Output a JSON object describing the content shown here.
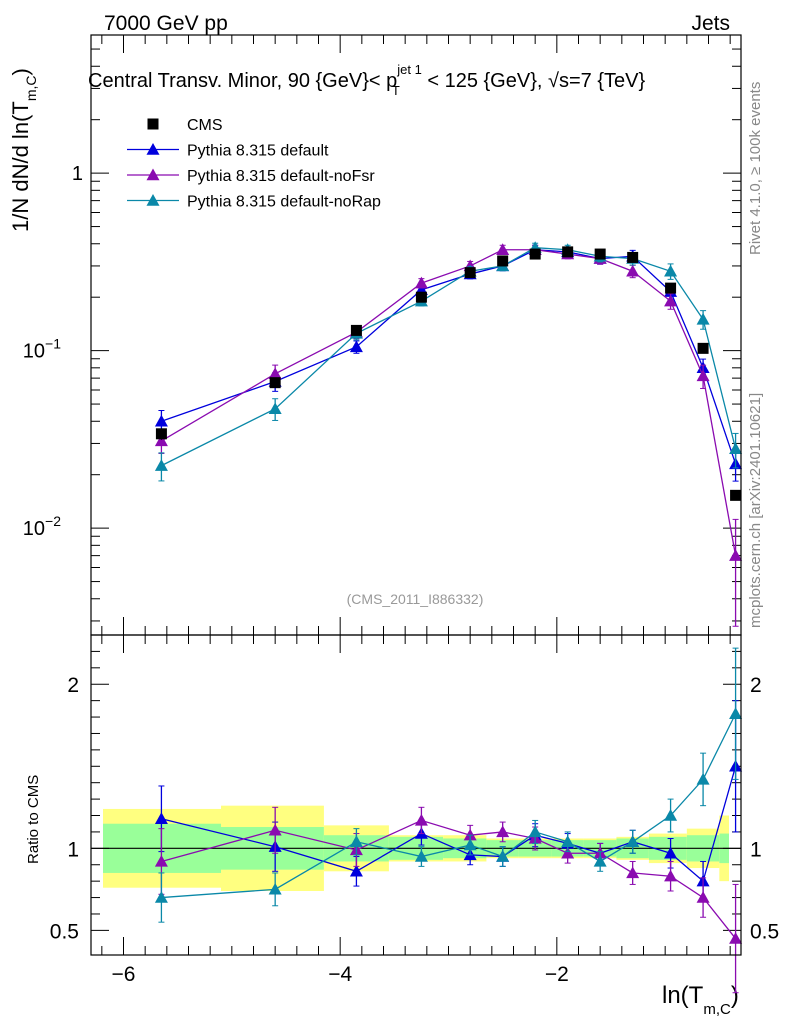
{
  "header": {
    "left": "7000 GeV pp",
    "right": "Jets"
  },
  "title": {
    "prefix": "Central Transv. Minor, 90 {GeV}< p",
    "sup": "jet 1",
    "sub": "T",
    "suffix": " < 125 {GeV}, ",
    "sqrt_s": "√s=7 {TeV}"
  },
  "side_labels": {
    "rivet": "Rivet 4.1.0, ≥ 100k events",
    "mcplots": "mcplots.cern.ch [arXiv:2401.10621]"
  },
  "analysis_id": "(CMS_2011_I886332)",
  "colors": {
    "cms": "#000000",
    "default": "#0000dd",
    "noFsr": "#8a0bb0",
    "noRap": "#0a88a8",
    "band_yellow": "#ffff80",
    "band_green": "#99ff99"
  },
  "chart_data": {
    "type": "scatter",
    "xlabel_main": "ln(T",
    "xlabel_sub": "m,C",
    "xlabel_close": ")",
    "ylabel_main": "1/N    dN/d ln(T",
    "ylabel_sub": "m,C",
    "ylabel_close": ")",
    "ratio_ylabel": "Ratio to CMS",
    "xlim": [
      -6.3,
      -0.3
    ],
    "ylim_main": [
      0.0025,
      6.0
    ],
    "ylim_ratio": [
      0.35,
      2.3
    ],
    "main_yticks": [
      {
        "value": 1.0,
        "base": "1",
        "exp": ""
      },
      {
        "value": 0.1,
        "base": "10",
        "exp": "−1"
      },
      {
        "value": 0.01,
        "base": "10",
        "exp": "−2"
      }
    ],
    "ratio_yticks": [
      {
        "value": 0.5,
        "label": "0.5"
      },
      {
        "value": 1,
        "label": "1"
      },
      {
        "value": 2,
        "label": "2"
      }
    ],
    "xticks": [
      {
        "value": -6,
        "label": "−6"
      },
      {
        "value": -4,
        "label": "−4"
      },
      {
        "value": -2,
        "label": "−2"
      }
    ],
    "x": [
      -5.65,
      -4.6,
      -3.85,
      -3.25,
      -2.8,
      -2.5,
      -2.2,
      -1.9,
      -1.6,
      -1.3,
      -0.95,
      -0.65,
      -0.35
    ],
    "cms_bins": [
      [
        -6.3,
        -5.1
      ],
      [
        -5.1,
        -4.15
      ],
      [
        -4.15,
        -3.55
      ],
      [
        -3.55,
        -3.05
      ],
      [
        -3.05,
        -2.65
      ],
      [
        -2.65,
        -2.35
      ],
      [
        -2.35,
        -2.05
      ],
      [
        -2.05,
        -1.75
      ],
      [
        -1.75,
        -1.45
      ],
      [
        -1.45,
        -1.15
      ],
      [
        -1.15,
        -0.8
      ],
      [
        -0.8,
        -0.5
      ],
      [
        -0.5,
        -0.2
      ]
    ],
    "cms_points": [
      0.034,
      0.066,
      0.13,
      0.2,
      0.275,
      0.32,
      0.35,
      0.36,
      0.35,
      0.335,
      0.225,
      0.103,
      0.0153
    ],
    "cms_stat_rel": [
      0.15,
      0.13,
      0.08,
      0.07,
      0.06,
      0.05,
      0.05,
      0.05,
      0.05,
      0.06,
      0.07,
      0.08,
      0.09
    ],
    "cms_tot_rel": [
      0.24,
      0.26,
      0.14,
      0.08,
      0.08,
      0.06,
      0.06,
      0.06,
      0.06,
      0.07,
      0.09,
      0.12,
      0.2
    ],
    "series": [
      {
        "name": "Pythia 8.315 default",
        "key": "default",
        "values": [
          0.04,
          0.067,
          0.105,
          0.22,
          0.27,
          0.3,
          0.37,
          0.36,
          0.33,
          0.34,
          0.215,
          0.08,
          0.023
        ],
        "err_rel": [
          0.15,
          0.12,
          0.08,
          0.06,
          0.06,
          0.06,
          0.06,
          0.06,
          0.07,
          0.08,
          0.1,
          0.12,
          0.2
        ],
        "ratio": [
          1.18,
          1.01,
          0.86,
          1.09,
          0.96,
          0.95,
          1.08,
          1.03,
          0.97,
          1.04,
          0.97,
          0.8,
          1.5
        ],
        "ratio_err": [
          0.2,
          0.15,
          0.09,
          0.07,
          0.06,
          0.06,
          0.07,
          0.06,
          0.06,
          0.07,
          0.09,
          0.12,
          0.4
        ]
      },
      {
        "name": "Pythia 8.315 default-noFsr",
        "key": "noFsr",
        "values": [
          0.031,
          0.074,
          0.127,
          0.24,
          0.3,
          0.37,
          0.37,
          0.35,
          0.33,
          0.28,
          0.19,
          0.072,
          0.007
        ],
        "err_rel": [
          0.15,
          0.12,
          0.08,
          0.06,
          0.06,
          0.06,
          0.06,
          0.06,
          0.07,
          0.08,
          0.1,
          0.15,
          0.6
        ],
        "ratio": [
          0.92,
          1.11,
          0.99,
          1.17,
          1.08,
          1.1,
          1.06,
          0.97,
          0.97,
          0.85,
          0.83,
          0.7,
          0.45
        ],
        "ratio_err": [
          0.2,
          0.14,
          0.1,
          0.08,
          0.06,
          0.06,
          0.07,
          0.06,
          0.06,
          0.07,
          0.09,
          0.12,
          0.33
        ]
      },
      {
        "name": "Pythia 8.315 default-noRap",
        "key": "noRap",
        "values": [
          0.0225,
          0.047,
          0.125,
          0.19,
          0.28,
          0.3,
          0.38,
          0.37,
          0.34,
          0.33,
          0.28,
          0.15,
          0.028
        ],
        "err_rel": [
          0.18,
          0.14,
          0.08,
          0.06,
          0.06,
          0.06,
          0.06,
          0.06,
          0.07,
          0.08,
          0.1,
          0.12,
          0.22
        ],
        "ratio": [
          0.7,
          0.75,
          1.04,
          0.95,
          1.02,
          0.95,
          1.1,
          1.04,
          0.92,
          1.04,
          1.2,
          1.42,
          1.82
        ],
        "ratio_err": [
          0.15,
          0.1,
          0.08,
          0.06,
          0.06,
          0.06,
          0.07,
          0.06,
          0.06,
          0.07,
          0.1,
          0.16,
          0.4
        ]
      }
    ],
    "legend": [
      {
        "label": "CMS",
        "key": "cms"
      },
      {
        "label": "Pythia 8.315 default",
        "key": "default"
      },
      {
        "label": "Pythia 8.315 default-noFsr",
        "key": "noFsr"
      },
      {
        "label": "Pythia 8.315 default-noRap",
        "key": "noRap"
      }
    ],
    "legend_position": "top-left"
  }
}
